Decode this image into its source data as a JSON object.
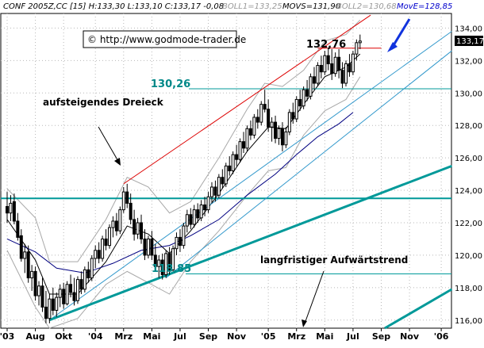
{
  "header": {
    "title": "CONF 2005Z,CC [15] H:133,30 L:133,10 C:133,17 -0,08",
    "boll1": "BOLL1=133,25",
    "movs": "MOVS=131,90",
    "boll2": "BOLL2=130,68",
    "move": "MovE=128,85"
  },
  "watermark": "© http://www.godmode-trader.de",
  "annotations": {
    "triangle_label": "aufsteigendes Dreieck",
    "trend_label": "langfristiger Aufwärtstrend",
    "resistance_label": "130,26",
    "top_label": "132,76",
    "low_label": "118,85",
    "last_price_box": "133,17"
  },
  "colors": {
    "background": "#ffffff",
    "frame": "#000000",
    "grid": "#b8b8b8",
    "candle": "#000000",
    "bollinger": "#a8a8a8",
    "moving_average_short": "#000000",
    "moving_average_long": "#000080",
    "triangle_line": "#dd0000",
    "channel_line": "#3399cc",
    "support_line": "#009999",
    "teal_label": "#008888",
    "header_blue": "#0000cc",
    "header_gray": "#999999",
    "arrow_blue": "#1133dd"
  },
  "chart_data": {
    "type": "candlestick",
    "title": "",
    "ylim": [
      115.5,
      134.9
    ],
    "y_ticks": [
      "116,00",
      "118,00",
      "120,00",
      "122,00",
      "124,00",
      "126,00",
      "128,00",
      "130,00",
      "132,00",
      "134,00"
    ],
    "y_tick_values": [
      116,
      118,
      120,
      122,
      124,
      126,
      128,
      130,
      132,
      134
    ],
    "x_labels": [
      "'03",
      "Aug",
      "Okt",
      "'04",
      "Mrz",
      "Mai",
      "Jul",
      "Sep",
      "Nov",
      "'05",
      "Mrz",
      "Mai",
      "Jul",
      "Sep",
      "Nov",
      "'06"
    ],
    "x_label_index": [
      0,
      8,
      16,
      25,
      33,
      41,
      49,
      57,
      65,
      74,
      82,
      90,
      98,
      106,
      114,
      123
    ],
    "n_periods": 126,
    "candles": [
      {
        "i": 0,
        "o": 123.0,
        "h": 123.9,
        "l": 122.0,
        "c": 122.6
      },
      {
        "i": 1,
        "o": 122.6,
        "h": 123.7,
        "l": 122.1,
        "c": 123.2
      },
      {
        "i": 2,
        "o": 123.3,
        "h": 123.8,
        "l": 121.9,
        "c": 122.1
      },
      {
        "i": 3,
        "o": 122.1,
        "h": 122.6,
        "l": 120.9,
        "c": 121.1
      },
      {
        "i": 4,
        "o": 121.2,
        "h": 121.6,
        "l": 119.6,
        "c": 119.8
      },
      {
        "i": 5,
        "o": 119.8,
        "h": 120.7,
        "l": 118.9,
        "c": 120.2
      },
      {
        "i": 6,
        "o": 120.2,
        "h": 120.6,
        "l": 118.3,
        "c": 118.6
      },
      {
        "i": 7,
        "o": 118.6,
        "h": 119.4,
        "l": 117.8,
        "c": 119.0
      },
      {
        "i": 8,
        "o": 119.0,
        "h": 119.3,
        "l": 117.2,
        "c": 117.5
      },
      {
        "i": 9,
        "o": 117.5,
        "h": 118.4,
        "l": 116.9,
        "c": 118.1
      },
      {
        "i": 10,
        "o": 118.1,
        "h": 118.6,
        "l": 116.5,
        "c": 116.8
      },
      {
        "i": 11,
        "o": 116.8,
        "h": 117.8,
        "l": 115.8,
        "c": 116.1
      },
      {
        "i": 12,
        "o": 116.1,
        "h": 117.6,
        "l": 115.8,
        "c": 117.3
      },
      {
        "i": 13,
        "o": 117.3,
        "h": 118.0,
        "l": 116.3,
        "c": 116.6
      },
      {
        "i": 14,
        "o": 116.6,
        "h": 117.7,
        "l": 116.2,
        "c": 117.4
      },
      {
        "i": 15,
        "o": 117.4,
        "h": 118.2,
        "l": 116.8,
        "c": 117.9
      },
      {
        "i": 16,
        "o": 117.9,
        "h": 118.3,
        "l": 116.7,
        "c": 117.0
      },
      {
        "i": 17,
        "o": 117.0,
        "h": 118.4,
        "l": 116.9,
        "c": 118.2
      },
      {
        "i": 18,
        "o": 118.2,
        "h": 118.8,
        "l": 117.4,
        "c": 117.7
      },
      {
        "i": 19,
        "o": 117.7,
        "h": 118.6,
        "l": 116.9,
        "c": 117.2
      },
      {
        "i": 20,
        "o": 117.2,
        "h": 118.7,
        "l": 117.0,
        "c": 118.5
      },
      {
        "i": 21,
        "o": 118.5,
        "h": 119.0,
        "l": 117.6,
        "c": 117.9
      },
      {
        "i": 22,
        "o": 117.9,
        "h": 119.3,
        "l": 117.7,
        "c": 119.1
      },
      {
        "i": 23,
        "o": 119.1,
        "h": 119.6,
        "l": 118.3,
        "c": 118.6
      },
      {
        "i": 24,
        "o": 118.6,
        "h": 120.0,
        "l": 118.4,
        "c": 119.8
      },
      {
        "i": 25,
        "o": 119.8,
        "h": 120.6,
        "l": 119.2,
        "c": 120.3
      },
      {
        "i": 26,
        "o": 120.3,
        "h": 120.8,
        "l": 119.5,
        "c": 119.8
      },
      {
        "i": 27,
        "o": 119.8,
        "h": 121.2,
        "l": 119.6,
        "c": 121.0
      },
      {
        "i": 28,
        "o": 121.0,
        "h": 121.6,
        "l": 120.3,
        "c": 120.6
      },
      {
        "i": 29,
        "o": 120.6,
        "h": 121.9,
        "l": 120.4,
        "c": 121.7
      },
      {
        "i": 30,
        "o": 121.7,
        "h": 122.4,
        "l": 121.1,
        "c": 122.1
      },
      {
        "i": 31,
        "o": 122.1,
        "h": 122.6,
        "l": 121.2,
        "c": 121.5
      },
      {
        "i": 32,
        "o": 121.5,
        "h": 123.0,
        "l": 121.3,
        "c": 122.8
      },
      {
        "i": 33,
        "o": 122.8,
        "h": 124.2,
        "l": 122.6,
        "c": 123.9
      },
      {
        "i": 34,
        "o": 123.9,
        "h": 124.4,
        "l": 122.9,
        "c": 123.2
      },
      {
        "i": 35,
        "o": 123.2,
        "h": 123.8,
        "l": 121.9,
        "c": 122.2
      },
      {
        "i": 36,
        "o": 122.2,
        "h": 122.8,
        "l": 120.9,
        "c": 121.3
      },
      {
        "i": 37,
        "o": 121.3,
        "h": 122.3,
        "l": 121.0,
        "c": 122.0
      },
      {
        "i": 38,
        "o": 122.0,
        "h": 122.5,
        "l": 120.7,
        "c": 121.0
      },
      {
        "i": 39,
        "o": 121.0,
        "h": 121.6,
        "l": 119.7,
        "c": 120.0
      },
      {
        "i": 40,
        "o": 120.0,
        "h": 121.2,
        "l": 119.8,
        "c": 121.0
      },
      {
        "i": 41,
        "o": 121.0,
        "h": 121.5,
        "l": 119.7,
        "c": 120.0
      },
      {
        "i": 42,
        "o": 120.0,
        "h": 120.7,
        "l": 119.0,
        "c": 119.3
      },
      {
        "i": 43,
        "o": 119.3,
        "h": 120.0,
        "l": 118.6,
        "c": 119.7
      },
      {
        "i": 44,
        "o": 119.7,
        "h": 120.1,
        "l": 118.5,
        "c": 118.8
      },
      {
        "i": 45,
        "o": 118.8,
        "h": 120.3,
        "l": 118.6,
        "c": 120.1
      },
      {
        "i": 46,
        "o": 120.1,
        "h": 120.5,
        "l": 118.8,
        "c": 119.1
      },
      {
        "i": 47,
        "o": 119.1,
        "h": 120.6,
        "l": 119.0,
        "c": 120.4
      },
      {
        "i": 48,
        "o": 120.4,
        "h": 121.4,
        "l": 120.0,
        "c": 121.1
      },
      {
        "i": 49,
        "o": 121.1,
        "h": 121.6,
        "l": 120.2,
        "c": 120.6
      },
      {
        "i": 50,
        "o": 120.6,
        "h": 122.0,
        "l": 120.4,
        "c": 121.8
      },
      {
        "i": 51,
        "o": 121.8,
        "h": 122.8,
        "l": 121.4,
        "c": 122.5
      },
      {
        "i": 52,
        "o": 122.5,
        "h": 122.9,
        "l": 121.6,
        "c": 121.9
      },
      {
        "i": 53,
        "o": 121.9,
        "h": 123.1,
        "l": 121.7,
        "c": 122.8
      },
      {
        "i": 54,
        "o": 122.8,
        "h": 123.2,
        "l": 122.0,
        "c": 122.3
      },
      {
        "i": 55,
        "o": 122.3,
        "h": 123.4,
        "l": 122.1,
        "c": 123.1
      },
      {
        "i": 56,
        "o": 123.1,
        "h": 123.6,
        "l": 122.4,
        "c": 122.8
      },
      {
        "i": 57,
        "o": 122.8,
        "h": 123.9,
        "l": 122.6,
        "c": 123.6
      },
      {
        "i": 58,
        "o": 123.6,
        "h": 124.5,
        "l": 123.2,
        "c": 124.2
      },
      {
        "i": 59,
        "o": 124.2,
        "h": 124.6,
        "l": 123.3,
        "c": 123.7
      },
      {
        "i": 60,
        "o": 123.7,
        "h": 125.0,
        "l": 123.5,
        "c": 124.8
      },
      {
        "i": 61,
        "o": 124.8,
        "h": 125.3,
        "l": 124.1,
        "c": 124.4
      },
      {
        "i": 62,
        "o": 124.4,
        "h": 125.7,
        "l": 124.2,
        "c": 125.5
      },
      {
        "i": 63,
        "o": 125.5,
        "h": 126.1,
        "l": 124.9,
        "c": 125.2
      },
      {
        "i": 64,
        "o": 125.2,
        "h": 126.4,
        "l": 125.0,
        "c": 126.2
      },
      {
        "i": 65,
        "o": 126.2,
        "h": 126.8,
        "l": 125.5,
        "c": 125.9
      },
      {
        "i": 66,
        "o": 125.9,
        "h": 127.2,
        "l": 125.7,
        "c": 127.0
      },
      {
        "i": 67,
        "o": 127.0,
        "h": 127.6,
        "l": 126.3,
        "c": 126.6
      },
      {
        "i": 68,
        "o": 126.6,
        "h": 128.0,
        "l": 126.4,
        "c": 127.8
      },
      {
        "i": 69,
        "o": 127.8,
        "h": 128.3,
        "l": 127.1,
        "c": 127.4
      },
      {
        "i": 70,
        "o": 127.4,
        "h": 128.7,
        "l": 127.2,
        "c": 128.5
      },
      {
        "i": 71,
        "o": 128.5,
        "h": 129.0,
        "l": 127.8,
        "c": 128.2
      },
      {
        "i": 72,
        "o": 128.2,
        "h": 129.5,
        "l": 128.0,
        "c": 129.3
      },
      {
        "i": 73,
        "o": 129.3,
        "h": 130.2,
        "l": 128.8,
        "c": 129.0
      },
      {
        "i": 74,
        "o": 129.0,
        "h": 129.6,
        "l": 127.6,
        "c": 127.9
      },
      {
        "i": 75,
        "o": 127.9,
        "h": 128.5,
        "l": 127.0,
        "c": 128.2
      },
      {
        "i": 76,
        "o": 128.2,
        "h": 128.6,
        "l": 126.9,
        "c": 127.2
      },
      {
        "i": 77,
        "o": 127.2,
        "h": 128.0,
        "l": 126.8,
        "c": 127.8
      },
      {
        "i": 78,
        "o": 127.8,
        "h": 128.2,
        "l": 126.4,
        "c": 126.8
      },
      {
        "i": 79,
        "o": 126.8,
        "h": 127.9,
        "l": 126.6,
        "c": 127.6
      },
      {
        "i": 80,
        "o": 127.6,
        "h": 129.0,
        "l": 127.4,
        "c": 128.8
      },
      {
        "i": 81,
        "o": 128.8,
        "h": 129.4,
        "l": 128.1,
        "c": 128.4
      },
      {
        "i": 82,
        "o": 128.4,
        "h": 129.8,
        "l": 128.2,
        "c": 129.6
      },
      {
        "i": 83,
        "o": 129.6,
        "h": 130.2,
        "l": 128.9,
        "c": 129.2
      },
      {
        "i": 84,
        "o": 129.2,
        "h": 130.4,
        "l": 129.0,
        "c": 130.2
      },
      {
        "i": 85,
        "o": 130.2,
        "h": 130.8,
        "l": 129.5,
        "c": 129.8
      },
      {
        "i": 86,
        "o": 129.8,
        "h": 131.2,
        "l": 129.6,
        "c": 131.0
      },
      {
        "i": 87,
        "o": 131.0,
        "h": 131.6,
        "l": 130.2,
        "c": 130.6
      },
      {
        "i": 88,
        "o": 130.6,
        "h": 131.9,
        "l": 130.4,
        "c": 131.7
      },
      {
        "i": 89,
        "o": 131.7,
        "h": 132.3,
        "l": 130.9,
        "c": 131.3
      },
      {
        "i": 90,
        "o": 131.3,
        "h": 132.6,
        "l": 131.1,
        "c": 132.3
      },
      {
        "i": 91,
        "o": 132.3,
        "h": 132.8,
        "l": 131.4,
        "c": 131.8
      },
      {
        "i": 92,
        "o": 131.8,
        "h": 132.7,
        "l": 130.8,
        "c": 131.2
      },
      {
        "i": 93,
        "o": 131.2,
        "h": 132.5,
        "l": 131.0,
        "c": 132.2
      },
      {
        "i": 94,
        "o": 132.2,
        "h": 132.7,
        "l": 130.9,
        "c": 131.4
      },
      {
        "i": 95,
        "o": 131.4,
        "h": 131.9,
        "l": 130.3,
        "c": 130.6
      },
      {
        "i": 96,
        "o": 130.6,
        "h": 132.0,
        "l": 130.4,
        "c": 131.8
      },
      {
        "i": 97,
        "o": 131.8,
        "h": 132.4,
        "l": 131.0,
        "c": 131.3
      },
      {
        "i": 98,
        "o": 131.3,
        "h": 132.6,
        "l": 131.1,
        "c": 132.4
      },
      {
        "i": 99,
        "o": 132.4,
        "h": 133.3,
        "l": 132.0,
        "c": 133.1
      },
      {
        "i": 100,
        "o": 133.1,
        "h": 133.6,
        "l": 132.7,
        "c": 133.2
      }
    ],
    "bollinger_upper": [
      [
        0,
        124.1
      ],
      [
        8,
        122.3
      ],
      [
        12,
        119.6
      ],
      [
        20,
        119.6
      ],
      [
        28,
        122.2
      ],
      [
        34,
        124.8
      ],
      [
        40,
        124.2
      ],
      [
        46,
        122.6
      ],
      [
        52,
        123.3
      ],
      [
        60,
        126.0
      ],
      [
        68,
        129.0
      ],
      [
        73,
        130.6
      ],
      [
        78,
        130.4
      ],
      [
        84,
        131.4
      ],
      [
        90,
        133.2
      ],
      [
        96,
        133.6
      ],
      [
        100,
        134.5
      ]
    ],
    "bollinger_lower": [
      [
        0,
        120.3
      ],
      [
        8,
        116.8
      ],
      [
        12,
        115.5
      ],
      [
        20,
        116.1
      ],
      [
        28,
        118.2
      ],
      [
        34,
        119.0
      ],
      [
        40,
        118.3
      ],
      [
        46,
        117.6
      ],
      [
        52,
        119.6
      ],
      [
        60,
        121.5
      ],
      [
        68,
        123.7
      ],
      [
        74,
        125.2
      ],
      [
        79,
        125.4
      ],
      [
        84,
        127.4
      ],
      [
        90,
        128.9
      ],
      [
        96,
        129.6
      ],
      [
        100,
        131.0
      ]
    ],
    "ma_short": [
      [
        0,
        122.2
      ],
      [
        8,
        119.7
      ],
      [
        12,
        117.6
      ],
      [
        20,
        117.6
      ],
      [
        28,
        119.6
      ],
      [
        34,
        121.8
      ],
      [
        40,
        121.3
      ],
      [
        46,
        120.1
      ],
      [
        52,
        121.5
      ],
      [
        60,
        123.8
      ],
      [
        68,
        126.4
      ],
      [
        74,
        127.9
      ],
      [
        79,
        127.8
      ],
      [
        84,
        129.3
      ],
      [
        90,
        131.0
      ],
      [
        96,
        131.6
      ],
      [
        100,
        132.4
      ]
    ],
    "ma_long": [
      [
        0,
        121.0
      ],
      [
        8,
        120.2
      ],
      [
        14,
        119.2
      ],
      [
        22,
        118.9
      ],
      [
        30,
        119.5
      ],
      [
        38,
        120.3
      ],
      [
        46,
        120.6
      ],
      [
        52,
        121.2
      ],
      [
        60,
        122.2
      ],
      [
        68,
        123.7
      ],
      [
        76,
        125.0
      ],
      [
        82,
        126.2
      ],
      [
        88,
        127.3
      ],
      [
        94,
        128.1
      ],
      [
        98,
        128.8
      ]
    ],
    "triangle_resistance": [
      [
        33,
        124.4
      ],
      [
        103,
        134.8
      ]
    ],
    "triangle_support_horizontal": [
      [
        88,
        132.76
      ],
      [
        106,
        132.76
      ]
    ],
    "support_line_level": 123.5,
    "resistance_level": 130.26,
    "low_level": 118.85,
    "trend_lines": [
      {
        "from": [
          12,
          116.0
        ],
        "to": [
          126,
          125.5
        ]
      },
      {
        "from": [
          107,
          115.5
        ],
        "to": [
          126,
          117.9
        ]
      }
    ],
    "channel_lines": [
      {
        "from": [
          45,
          118.6
        ],
        "to": [
          126,
          132.6
        ]
      },
      {
        "from": [
          12,
          116.0
        ],
        "to": [
          126,
          133.8
        ]
      }
    ]
  }
}
